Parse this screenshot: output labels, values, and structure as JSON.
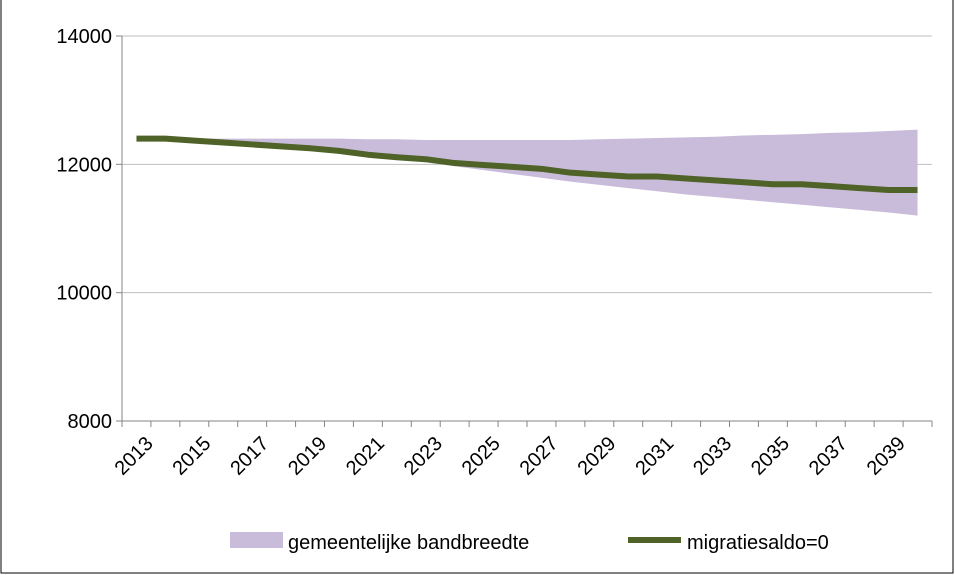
{
  "colors": {
    "band": "#c9bcdb",
    "line": "#4f6228",
    "grid": "#bfbfbf",
    "axis": "#868686",
    "border": "#000000"
  },
  "chart_data": {
    "type": "area",
    "title": "",
    "xlabel": "",
    "ylabel": "",
    "ylim": [
      8000,
      14000
    ],
    "y_ticks": [
      8000,
      10000,
      12000,
      14000
    ],
    "x_tick_labels": [
      "2013",
      "2015",
      "2017",
      "2019",
      "2021",
      "2023",
      "2025",
      "2027",
      "2029",
      "2031",
      "2033",
      "2035",
      "2037",
      "2039"
    ],
    "x": [
      2013,
      2014,
      2015,
      2016,
      2017,
      2018,
      2019,
      2020,
      2021,
      2022,
      2023,
      2024,
      2025,
      2026,
      2027,
      2028,
      2029,
      2030,
      2031,
      2032,
      2033,
      2034,
      2035,
      2036,
      2037,
      2038,
      2039,
      2040
    ],
    "grid": "horizontal",
    "legend_position": "bottom",
    "series": [
      {
        "name": "gemeentelijke bandbreedte",
        "kind": "band",
        "lower": [
          12400,
          12400,
          12380,
          12350,
          12320,
          12290,
          12250,
          12200,
          12140,
          12090,
          12030,
          11970,
          11910,
          11850,
          11790,
          11730,
          11680,
          11630,
          11580,
          11530,
          11490,
          11450,
          11410,
          11370,
          11330,
          11290,
          11250,
          11200
        ],
        "upper": [
          12400,
          12400,
          12400,
          12400,
          12400,
          12400,
          12400,
          12400,
          12390,
          12390,
          12380,
          12380,
          12380,
          12380,
          12380,
          12380,
          12390,
          12400,
          12410,
          12420,
          12430,
          12450,
          12460,
          12470,
          12490,
          12500,
          12520,
          12540
        ]
      },
      {
        "name": "migratiesaldo=0",
        "kind": "line",
        "values": [
          12400,
          12400,
          12370,
          12340,
          12310,
          12280,
          12250,
          12210,
          12150,
          12110,
          12080,
          12020,
          11990,
          11960,
          11930,
          11870,
          11840,
          11810,
          11810,
          11780,
          11750,
          11720,
          11690,
          11690,
          11660,
          11630,
          11600,
          11600
        ]
      }
    ]
  }
}
